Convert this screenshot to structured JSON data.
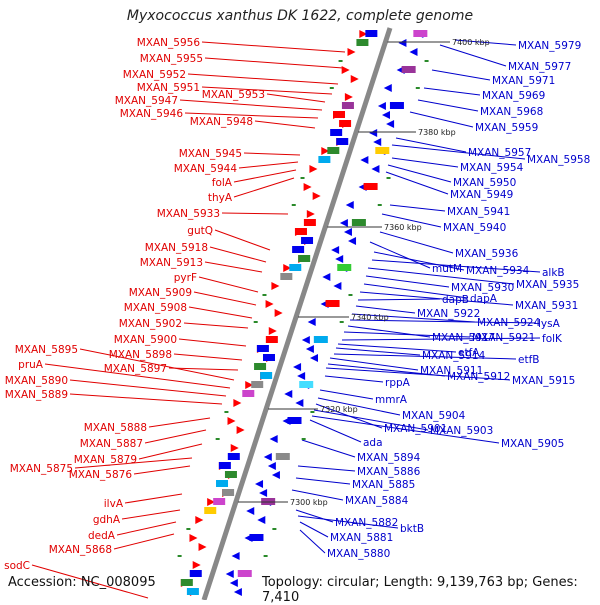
{
  "title": "Myxococcus xanthus DK 1622, complete genome",
  "footer": {
    "accession": "Accession: NC_008095",
    "summary": "Topology: circular; Length: 9,139,763 bp; Genes: 7,410"
  },
  "colors": {
    "left_label": "#e00000",
    "right_label": "#0000cc",
    "backbone": "#888888"
  },
  "kbp_markers": [
    "7400 kbp",
    "7380 kbp",
    "7360 kbp",
    "7340 kbp",
    "7320 kbp",
    "7300 kbp"
  ],
  "left_genes": [
    "MXAN_5956",
    "MXAN_5955",
    "MXAN_5952",
    "MXAN_5951",
    "MXAN_5953",
    "MXAN_5947",
    "MXAN_5946",
    "MXAN_5948",
    "MXAN_5945",
    "MXAN_5944",
    "folA",
    "thyA",
    "MXAN_5933",
    "gutQ",
    "MXAN_5918",
    "MXAN_5913",
    "pyrF",
    "MXAN_5909",
    "MXAN_5908",
    "MXAN_5902",
    "MXAN_5900",
    "MXAN_5898",
    "MXAN_5897",
    "MXAN_5895",
    "pruA",
    "MXAN_5890",
    "MXAN_5889",
    "MXAN_5888",
    "MXAN_5887",
    "MXAN_5879",
    "MXAN_5875",
    "MXAN_5876",
    "ilvA",
    "gdhA",
    "dedA",
    "MXAN_5868",
    "sodC"
  ],
  "right_genes": [
    "MXAN_5979",
    "MXAN_5977",
    "MXAN_5971",
    "MXAN_5969",
    "MXAN_5968",
    "MXAN_5959",
    "MXAN_5957",
    "MXAN_5958",
    "MXAN_5954",
    "MXAN_5950",
    "MXAN_5949",
    "MXAN_5941",
    "MXAN_5940",
    "MXAN_5936",
    "mutM",
    "MXAN_5934",
    "alkB",
    "MXAN_5935",
    "MXAN_5930",
    "dapA",
    "MXAN_5931",
    "dapB",
    "MXAN_5922",
    "MXAN_5924",
    "lysA",
    "MXAN_5917",
    "MXAN_5921",
    "folK",
    "etfA",
    "MXAN_5914",
    "etfB",
    "MXAN_5911",
    "MXAN_5912",
    "MXAN_5915",
    "rppA",
    "mmrA",
    "MXAN_5904",
    "MXAN_5901",
    "MXAN_5903",
    "MXAN_5905",
    "ada",
    "MXAN_5894",
    "MXAN_5886",
    "MXAN_5885",
    "MXAN_5884",
    "MXAN_5882",
    "bktB",
    "MXAN_5881",
    "MXAN_5880"
  ]
}
